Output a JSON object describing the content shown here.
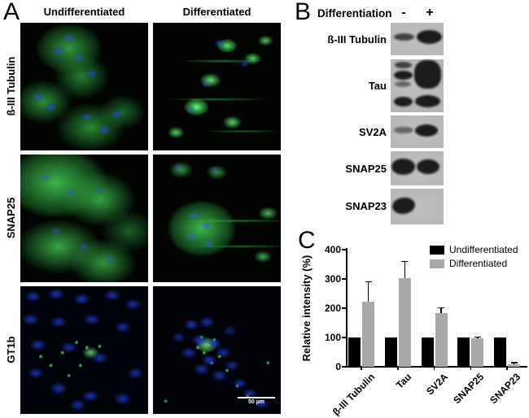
{
  "panel_a": {
    "letter": "A",
    "column_headers": [
      "Undifferentiated",
      "Differentiated"
    ],
    "row_labels": [
      "ß-III Tubulin",
      "SNAP25",
      "GT1b"
    ],
    "scale_bar": "50 µm",
    "micrographs": [
      {
        "row": "ß-III Tubulin",
        "column": "Undifferentiated",
        "look": "clustered-cells-green-cytoplasm-blue-nuclei"
      },
      {
        "row": "ß-III Tubulin",
        "column": "Differentiated",
        "look": "sparse-neuronal-cells-bright-green-with-processes"
      },
      {
        "row": "SNAP25",
        "column": "Undifferentiated",
        "look": "dense-green-cell-mass-blue-nuclei"
      },
      {
        "row": "SNAP25",
        "column": "Differentiated",
        "look": "cell-cluster-with-long-thin-green-processes"
      },
      {
        "row": "GT1b",
        "column": "Undifferentiated",
        "look": "many-blue-nuclei-sparse-green-puncta"
      },
      {
        "row": "GT1b",
        "column": "Differentiated",
        "look": "central-cluster-blue-nuclei-bright-green-puncta"
      }
    ]
  },
  "panel_b": {
    "letter": "B",
    "condition_label": "Differentiation",
    "lane_signs": [
      "-",
      "+"
    ],
    "blots": [
      {
        "label": "ß-III Tubulin",
        "minus_lane": "weak band",
        "plus_lane": "strong band"
      },
      {
        "label": "Tau",
        "minus_lane": "multiple weak bands",
        "plus_lane": "strong broad bands"
      },
      {
        "label": "SV2A",
        "minus_lane": "faint band",
        "plus_lane": "strong band"
      },
      {
        "label": "SNAP25",
        "minus_lane": "strong band",
        "plus_lane": "strong band"
      },
      {
        "label": "SNAP23",
        "minus_lane": "strong band",
        "plus_lane": "no band"
      }
    ]
  },
  "panel_c": {
    "letter": "C"
  },
  "chart_data": {
    "type": "bar",
    "title": "",
    "categories": [
      "β-III Tubulin",
      "Tau",
      "SV2A",
      "SNAP25",
      "SNAP23"
    ],
    "series": [
      {
        "name": "Undifferentiated",
        "color": "#000000",
        "values": [
          100,
          100,
          100,
          100,
          100
        ],
        "errors": [
          0,
          0,
          0,
          0,
          0
        ]
      },
      {
        "name": "Differentiated",
        "color": "#a8a8a8",
        "values": [
          222,
          302,
          183,
          98,
          8
        ],
        "errors": [
          68,
          58,
          19,
          3,
          6
        ]
      }
    ],
    "xlabel": "",
    "ylabel": "Relative intensity (%)",
    "ylim": [
      0,
      400
    ],
    "yticks": [
      0,
      100,
      200,
      300,
      400
    ],
    "legend_position": "top-right",
    "grid": false
  }
}
